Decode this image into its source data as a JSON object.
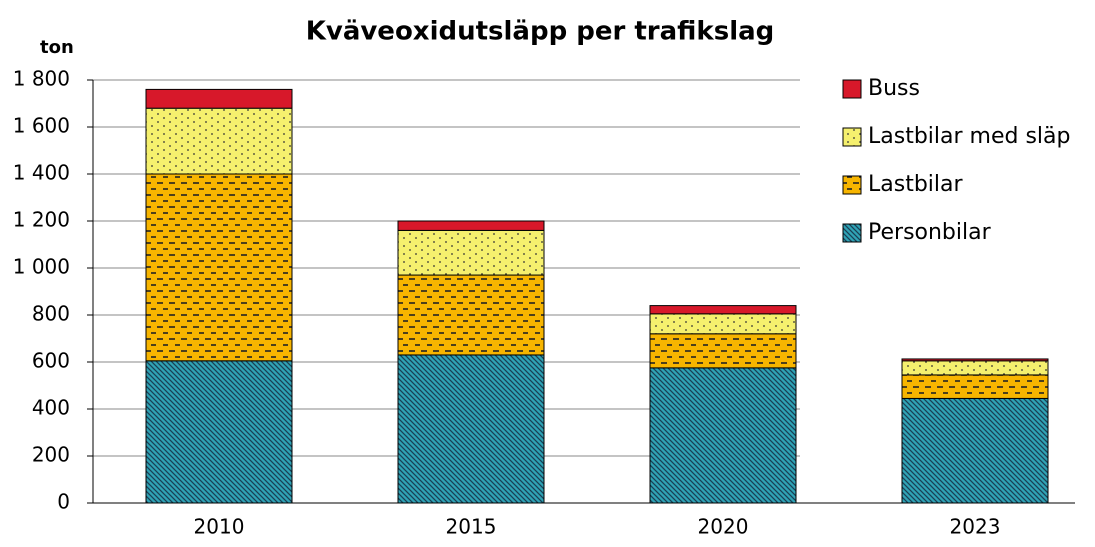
{
  "chart_data": {
    "type": "stacked_bar",
    "title": "Kväveoxidutsläpp per trafikslag",
    "y_label": "ton",
    "categories": [
      "2010",
      "2015",
      "2020",
      "2023"
    ],
    "series": [
      {
        "name": "Personbilar",
        "color": "#2fa3b5",
        "pattern": "hatch",
        "values": [
          605,
          630,
          575,
          445
        ]
      },
      {
        "name": "Lastbilar",
        "color": "#f7b500",
        "pattern": "dashes",
        "values": [
          795,
          340,
          145,
          100
        ]
      },
      {
        "name": "Lastbilar med släp",
        "color": "#f5f06e",
        "pattern": "dots",
        "values": [
          280,
          190,
          85,
          60
        ]
      },
      {
        "name": "Buss",
        "color": "#d7182a",
        "pattern": "solid",
        "values": [
          80,
          40,
          35,
          8
        ]
      }
    ],
    "ylim": [
      0,
      1800
    ],
    "yticks": [
      0,
      200,
      400,
      600,
      800,
      {
        "value": 1000,
        "label": "1 000"
      },
      {
        "value": 1200,
        "label": "1 200"
      },
      {
        "value": 1400,
        "label": "1 400"
      },
      {
        "value": 1600,
        "label": "1 600"
      },
      {
        "value": 1800,
        "label": "1 800"
      }
    ],
    "grid": true
  }
}
